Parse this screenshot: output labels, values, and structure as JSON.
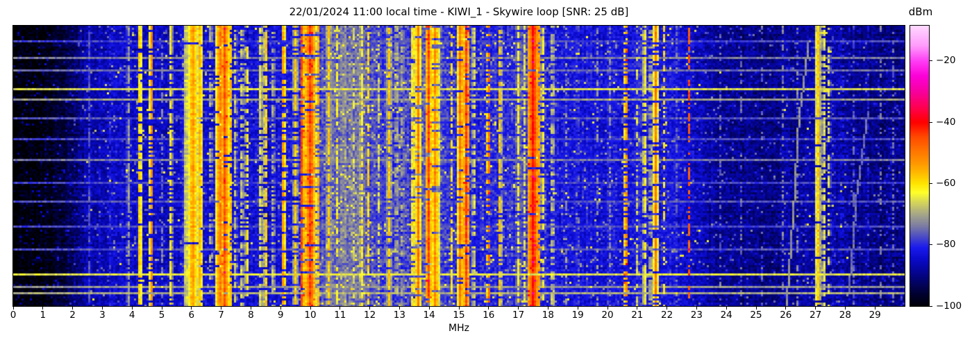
{
  "title": "22/01/2024 11:00 local time - KIWI_1 - Skywire loop [SNR: 25 dB]",
  "x_axis": {
    "label": "MHz",
    "range": [
      0,
      30
    ],
    "ticks": [
      0,
      1,
      2,
      3,
      4,
      5,
      6,
      7,
      8,
      9,
      10,
      11,
      12,
      13,
      14,
      15,
      16,
      17,
      18,
      19,
      20,
      21,
      22,
      23,
      24,
      25,
      26,
      27,
      28,
      29
    ]
  },
  "colorbar": {
    "label": "dBm",
    "ticks": [
      -20,
      -40,
      -60,
      -80,
      -100
    ],
    "vmax": -8.5,
    "vmin": -100,
    "colormap_stops": [
      [
        -101,
        "#000000"
      ],
      [
        -96,
        "#010133"
      ],
      [
        -92,
        "#03036a"
      ],
      [
        -88,
        "#0606a0"
      ],
      [
        -85,
        "#0a0ac8"
      ],
      [
        -81,
        "#1a1aee"
      ],
      [
        -78,
        "#4444cc"
      ],
      [
        -74,
        "#7c7ca4"
      ],
      [
        -70,
        "#a8a888"
      ],
      [
        -66,
        "#d8d858"
      ],
      [
        -63,
        "#ffff2a"
      ],
      [
        -60,
        "#ffe400"
      ],
      [
        -55,
        "#ffa800"
      ],
      [
        -50,
        "#ff7a00"
      ],
      [
        -45,
        "#ff4d00"
      ],
      [
        -40,
        "#ff0000"
      ],
      [
        -35,
        "#ff0054"
      ],
      [
        -30,
        "#f7009e"
      ],
      [
        -25,
        "#fc00d8"
      ],
      [
        -20,
        "#ff3df5"
      ],
      [
        -15,
        "#ff9bfc"
      ],
      [
        -8.5,
        "#ffd9ff"
      ]
    ]
  },
  "chart_data": {
    "type": "heatmap",
    "subtype": "radio-spectrogram-waterfall",
    "title": "22/01/2024 11:00 local time - KIWI_1 - Skywire loop [SNR: 25 dB]",
    "xlabel": "MHz",
    "x_range": [
      0,
      30
    ],
    "y_ticks": [],
    "value_unit": "dBm",
    "value_range": [
      -100,
      -8.5
    ],
    "noise_floor_dbm_by_mhz": [
      [
        0,
        -101
      ],
      [
        0.8,
        -100
      ],
      [
        1.5,
        -97
      ],
      [
        2.0,
        -93
      ],
      [
        2.4,
        -88
      ],
      [
        2.8,
        -86
      ],
      [
        3.5,
        -85
      ],
      [
        4.5,
        -84.5
      ],
      [
        5.5,
        -84
      ],
      [
        6.5,
        -83
      ],
      [
        7.5,
        -83
      ],
      [
        8.5,
        -83.5
      ],
      [
        9.5,
        -82
      ],
      [
        10.2,
        -78
      ],
      [
        10.7,
        -75
      ],
      [
        11.3,
        -74.5
      ],
      [
        11.9,
        -76
      ],
      [
        12.4,
        -79
      ],
      [
        13.2,
        -78
      ],
      [
        13.8,
        -76
      ],
      [
        14.4,
        -77
      ],
      [
        15.0,
        -80
      ],
      [
        15.8,
        -81
      ],
      [
        16.5,
        -80
      ],
      [
        17.2,
        -79
      ],
      [
        17.9,
        -81
      ],
      [
        18.6,
        -82
      ],
      [
        19.5,
        -83
      ],
      [
        20.3,
        -82
      ],
      [
        21.0,
        -81.5
      ],
      [
        21.8,
        -82
      ],
      [
        22.5,
        -84
      ],
      [
        23.2,
        -87
      ],
      [
        24.0,
        -89
      ],
      [
        25.0,
        -90
      ],
      [
        26.0,
        -89
      ],
      [
        26.8,
        -87
      ],
      [
        27.5,
        -87
      ],
      [
        28.2,
        -89
      ],
      [
        29.0,
        -90
      ],
      [
        30,
        -90
      ]
    ],
    "signals": [
      {
        "f": 2.57,
        "w": 0.04,
        "level": -76,
        "duty": 0.85
      },
      {
        "f": 3.25,
        "w": 0.03,
        "level": -80,
        "duty": 0.7
      },
      {
        "f": 3.87,
        "w": 0.04,
        "level": -66,
        "duty": 0.8
      },
      {
        "f": 4.27,
        "w": 0.05,
        "level": -52,
        "duty": 0.85
      },
      {
        "f": 4.65,
        "w": 0.04,
        "level": -50,
        "duty": 0.75
      },
      {
        "f": 5.0,
        "w": 0.03,
        "level": -72,
        "duty": 0.6
      },
      {
        "f": 5.3,
        "w": 0.04,
        "level": -60,
        "duty": 0.7
      },
      {
        "f": 5.75,
        "w": 0.03,
        "level": -68,
        "duty": 0.5
      },
      {
        "f": 6.05,
        "w": 0.18,
        "level": -54,
        "duty": 0.95
      },
      {
        "f": 6.3,
        "w": 0.06,
        "level": -52,
        "duty": 0.9
      },
      {
        "f": 6.65,
        "w": 0.03,
        "level": -62,
        "duty": 0.5
      },
      {
        "f": 6.95,
        "w": 0.08,
        "level": -48,
        "duty": 0.9
      },
      {
        "f": 7.12,
        "w": 0.1,
        "level": -46,
        "duty": 0.95
      },
      {
        "f": 7.3,
        "w": 0.05,
        "level": -52,
        "duty": 0.8
      },
      {
        "f": 7.48,
        "w": 0.03,
        "level": -64,
        "duty": 0.6
      },
      {
        "f": 7.7,
        "w": 0.03,
        "level": -60,
        "duty": 0.6
      },
      {
        "f": 7.87,
        "w": 0.03,
        "level": -58,
        "duty": 0.55
      },
      {
        "f": 8.33,
        "w": 0.04,
        "level": -58,
        "duty": 0.7
      },
      {
        "f": 8.5,
        "w": 0.05,
        "level": -56,
        "duty": 0.75
      },
      {
        "f": 8.75,
        "w": 0.04,
        "level": -62,
        "duty": 0.5
      },
      {
        "f": 9.1,
        "w": 0.04,
        "level": -48,
        "duty": 0.7
      },
      {
        "f": 9.5,
        "w": 0.05,
        "level": -58,
        "duty": 0.7
      },
      {
        "f": 9.72,
        "w": 0.05,
        "level": -44,
        "duty": 0.85
      },
      {
        "f": 10.0,
        "w": 0.12,
        "level": -44,
        "duty": 0.95
      },
      {
        "f": 10.25,
        "w": 0.05,
        "level": -52,
        "duty": 0.7
      },
      {
        "f": 10.62,
        "w": 0.05,
        "level": -58,
        "duty": 0.75
      },
      {
        "f": 10.9,
        "w": 0.03,
        "level": -62,
        "duty": 0.6
      },
      {
        "f": 11.15,
        "w": 0.04,
        "level": -62,
        "duty": 0.6
      },
      {
        "f": 11.45,
        "w": 0.04,
        "level": -64,
        "duty": 0.55
      },
      {
        "f": 11.72,
        "w": 0.05,
        "level": -58,
        "duty": 0.7
      },
      {
        "f": 11.95,
        "w": 0.04,
        "level": -60,
        "duty": 0.6
      },
      {
        "f": 12.3,
        "w": 0.03,
        "level": -66,
        "duty": 0.5
      },
      {
        "f": 12.65,
        "w": 0.06,
        "level": -58,
        "duty": 0.7
      },
      {
        "f": 12.9,
        "w": 0.04,
        "level": -60,
        "duty": 0.6
      },
      {
        "f": 13.1,
        "w": 0.04,
        "level": -62,
        "duty": 0.55
      },
      {
        "f": 13.45,
        "w": 0.06,
        "level": -56,
        "duty": 0.75
      },
      {
        "f": 13.62,
        "w": 0.06,
        "level": -48,
        "duty": 0.85
      },
      {
        "f": 13.97,
        "w": 0.06,
        "level": -44,
        "duty": 0.9
      },
      {
        "f": 14.2,
        "w": 0.12,
        "level": -52,
        "duty": 0.85
      },
      {
        "f": 14.75,
        "w": 0.04,
        "level": -60,
        "duty": 0.6
      },
      {
        "f": 15.05,
        "w": 0.08,
        "level": -48,
        "duty": 0.9
      },
      {
        "f": 15.25,
        "w": 0.08,
        "level": -44,
        "duty": 0.9
      },
      {
        "f": 15.5,
        "w": 0.04,
        "level": -58,
        "duty": 0.65
      },
      {
        "f": 16.0,
        "w": 0.05,
        "level": -46,
        "duty": 0.5
      },
      {
        "f": 16.38,
        "w": 0.05,
        "level": -56,
        "duty": 0.6
      },
      {
        "f": 17.0,
        "w": 0.05,
        "level": -62,
        "duty": 0.65
      },
      {
        "f": 17.2,
        "w": 0.04,
        "level": -64,
        "duty": 0.55
      },
      {
        "f": 17.5,
        "w": 0.12,
        "level": -40,
        "duty": 0.97
      },
      {
        "f": 17.68,
        "w": 0.05,
        "level": -50,
        "duty": 0.8
      },
      {
        "f": 17.82,
        "w": 0.04,
        "level": -58,
        "duty": 0.6
      },
      {
        "f": 18.15,
        "w": 0.03,
        "level": -58,
        "duty": 0.55
      },
      {
        "f": 18.6,
        "w": 0.03,
        "level": -70,
        "duty": 0.4
      },
      {
        "f": 19.0,
        "w": 0.03,
        "level": -68,
        "duty": 0.45
      },
      {
        "f": 19.65,
        "w": 0.03,
        "level": -70,
        "duty": 0.4
      },
      {
        "f": 20.1,
        "w": 0.03,
        "level": -68,
        "duty": 0.4
      },
      {
        "f": 20.62,
        "w": 0.04,
        "level": -46,
        "duty": 0.55
      },
      {
        "f": 21.0,
        "w": 0.03,
        "level": -66,
        "duty": 0.5
      },
      {
        "f": 21.25,
        "w": 0.05,
        "level": -58,
        "duty": 0.65
      },
      {
        "f": 21.45,
        "w": 0.04,
        "level": -60,
        "duty": 0.55
      },
      {
        "f": 21.62,
        "w": 0.06,
        "level": -50,
        "duty": 0.8
      },
      {
        "f": 21.9,
        "w": 0.04,
        "level": -60,
        "duty": 0.5
      },
      {
        "f": 22.35,
        "w": 0.03,
        "level": -68,
        "duty": 0.45
      },
      {
        "f": 22.75,
        "w": 0.04,
        "level": -46,
        "duty": 0.5
      },
      {
        "f": 23.2,
        "w": 0.03,
        "level": -74,
        "duty": 0.4
      },
      {
        "f": 23.8,
        "w": 0.03,
        "level": -76,
        "duty": 0.35
      },
      {
        "f": 24.5,
        "w": 0.03,
        "level": -76,
        "duty": 0.35
      },
      {
        "f": 25.2,
        "w": 0.03,
        "level": -76,
        "duty": 0.3
      },
      {
        "f": 25.9,
        "w": 0.03,
        "level": -74,
        "duty": 0.35
      },
      {
        "f": 26.4,
        "w": 0.03,
        "level": -72,
        "duty": 0.4
      },
      {
        "f": 27.07,
        "w": 0.07,
        "level": -56,
        "duty": 0.9
      },
      {
        "f": 27.28,
        "w": 0.05,
        "level": -60,
        "duty": 0.6
      },
      {
        "f": 27.45,
        "w": 0.04,
        "level": -64,
        "duty": 0.5
      },
      {
        "f": 27.9,
        "w": 0.03,
        "level": -72,
        "duty": 0.4
      },
      {
        "f": 28.3,
        "w": 0.03,
        "level": -72,
        "duty": 0.45
      },
      {
        "f": 28.75,
        "w": 0.03,
        "level": -76,
        "duty": 0.35
      },
      {
        "f": 29.2,
        "w": 0.03,
        "level": -74,
        "duty": 0.4
      },
      {
        "f": 29.6,
        "w": 0.03,
        "level": -72,
        "duty": 0.4
      }
    ],
    "broadband_event_rows": [
      {
        "t": 0.055,
        "level": -78
      },
      {
        "t": 0.11,
        "level": -74
      },
      {
        "t": 0.16,
        "level": -75
      },
      {
        "t": 0.225,
        "level": -66
      },
      {
        "t": 0.262,
        "level": -71
      },
      {
        "t": 0.33,
        "level": -77
      },
      {
        "t": 0.405,
        "level": -78
      },
      {
        "t": 0.475,
        "level": -74
      },
      {
        "t": 0.56,
        "level": -78
      },
      {
        "t": 0.63,
        "level": -77
      },
      {
        "t": 0.72,
        "level": -78
      },
      {
        "t": 0.8,
        "level": -77
      },
      {
        "t": 0.885,
        "level": -65
      },
      {
        "t": 0.93,
        "level": -72
      },
      {
        "t": 0.955,
        "level": -70
      }
    ],
    "ionosonde_traces": [
      {
        "level": -72,
        "points_f_t": [
          [
            26.0,
            1.0
          ],
          [
            26.25,
            0.62
          ],
          [
            26.4,
            0.34
          ],
          [
            26.75,
            0.05
          ]
        ]
      },
      {
        "level": -75,
        "points_f_t": [
          [
            28.1,
            0.95
          ],
          [
            28.35,
            0.6
          ],
          [
            28.75,
            0.3
          ]
        ]
      }
    ]
  }
}
